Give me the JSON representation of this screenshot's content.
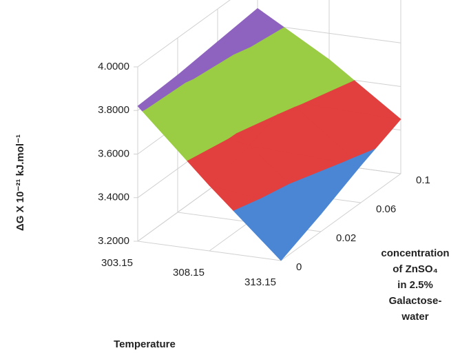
{
  "chart_data": {
    "type": "surface",
    "z_axis_label": "ΔG X 10⁻²¹ kJ.mol⁻¹",
    "x_axis_label": "Temperature",
    "depth_axis_label": [
      "concentration",
      "of ZnSO₄",
      "in 2.5%",
      "Galactose-",
      "water"
    ],
    "categories": [
      "303.15",
      "308.15",
      "313.15"
    ],
    "depth_categories": [
      "0",
      "0.02",
      "0.06",
      "0.1"
    ],
    "z": [
      [
        3.82,
        3.5,
        3.2
      ],
      [
        3.83,
        3.55,
        3.28
      ],
      [
        3.85,
        3.62,
        3.37
      ],
      [
        3.87,
        3.68,
        3.45
      ]
    ],
    "zlim": [
      3.2,
      4.0
    ],
    "zticks": [
      {
        "value": 3.2,
        "label": "3.2000"
      },
      {
        "value": 3.4,
        "label": "3.4000"
      },
      {
        "value": 3.6,
        "label": "3.6000"
      },
      {
        "value": 3.8,
        "label": "3.8000"
      },
      {
        "value": 4.0,
        "label": "4.0000"
      }
    ],
    "band_colors": [
      "#4a86d4",
      "#e23f3f",
      "#9acd44",
      "#8e63c0"
    ],
    "grid": true
  }
}
